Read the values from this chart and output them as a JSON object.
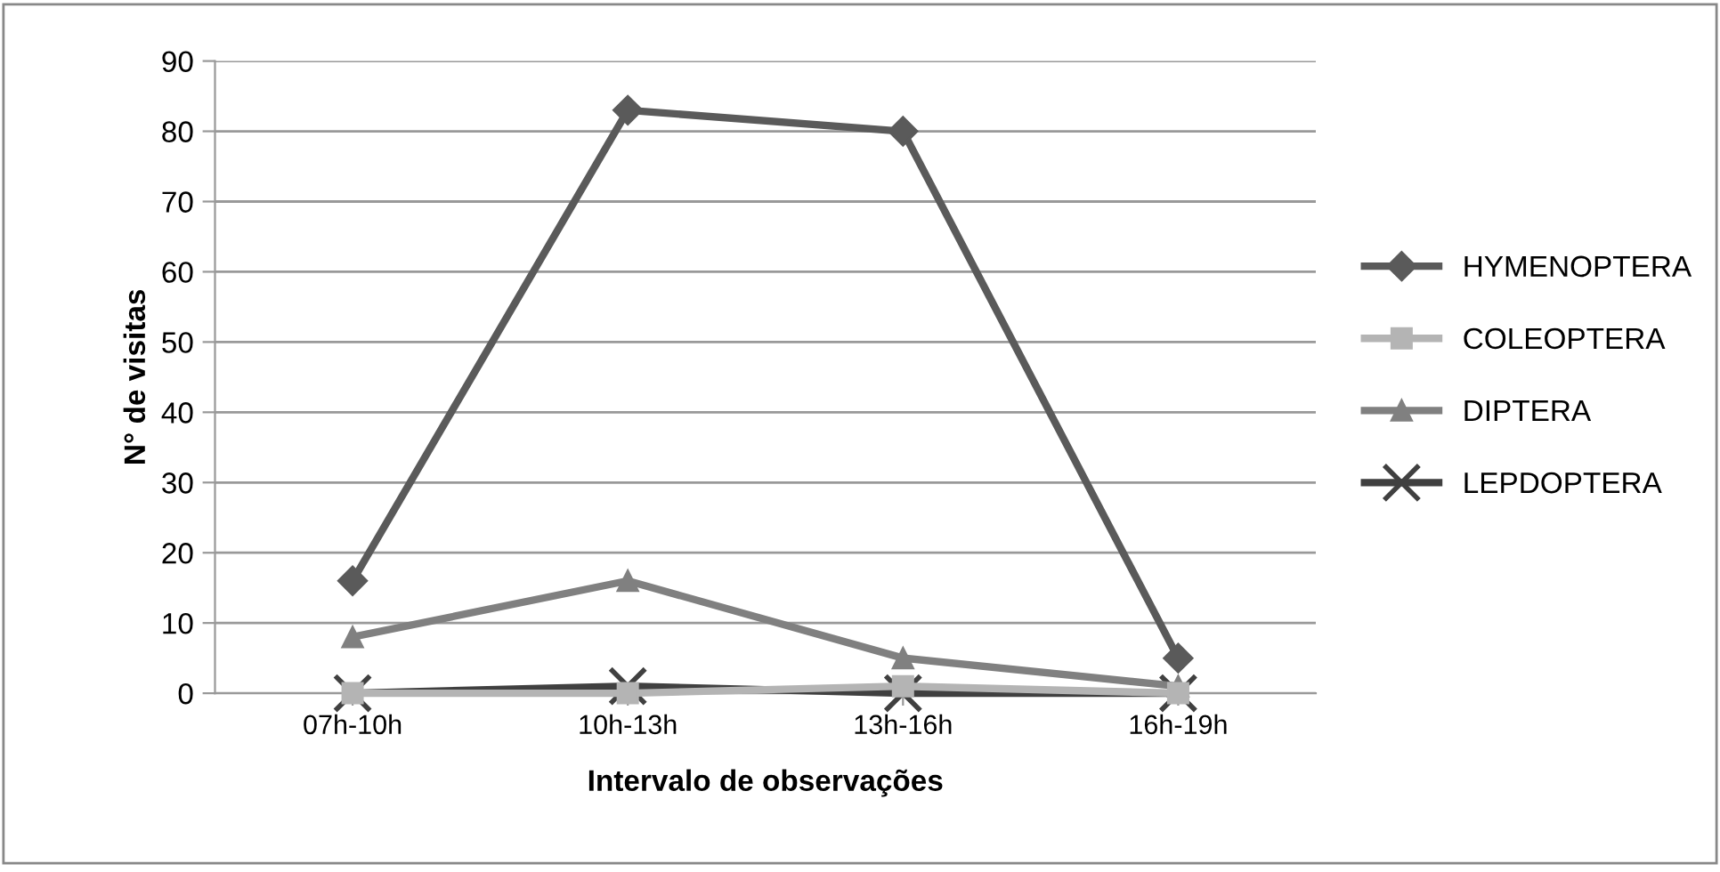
{
  "chart_data": {
    "type": "line",
    "xlabel": "Intervalo de observações",
    "ylabel": "N° de visitas",
    "categories": [
      "07h-10h",
      "10h-13h",
      "13h-16h",
      "16h-19h"
    ],
    "series": [
      {
        "name": "HYMENOPTERA",
        "color": "#5a5a5a",
        "marker": "diamond",
        "values": [
          16,
          83,
          80,
          5
        ]
      },
      {
        "name": "COLEOPTERA",
        "color": "#b4b4b4",
        "marker": "square",
        "values": [
          0,
          0,
          1,
          0
        ]
      },
      {
        "name": "DIPTERA",
        "color": "#808080",
        "marker": "triangle",
        "values": [
          8,
          16,
          5,
          1
        ]
      },
      {
        "name": "LEPDOPTERA",
        "color": "#404040",
        "marker": "cross",
        "values": [
          0,
          1,
          0,
          0
        ]
      }
    ],
    "ylim": [
      0,
      90
    ],
    "yticks": [
      0,
      10,
      20,
      30,
      40,
      50,
      60,
      70,
      80,
      90
    ],
    "grid": "y",
    "legend": "right",
    "line_style": "solid"
  }
}
